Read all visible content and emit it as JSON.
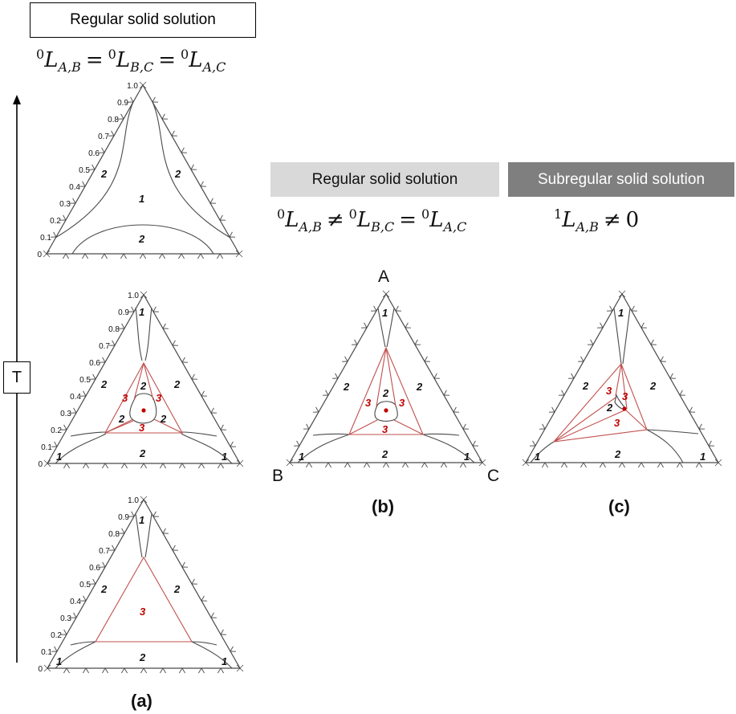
{
  "header_a": {
    "title": "Regular solid solution"
  },
  "header_b": {
    "title": "Regular solid solution"
  },
  "header_c": {
    "title": "Subregular solid solution"
  },
  "formula_a": {
    "sup": "0",
    "L": "L",
    "sub1": "A,B",
    "op1": "=",
    "sub2": "B,C",
    "op2": "=",
    "sub3": "A,C"
  },
  "formula_b": {
    "sup": "0",
    "L": "L",
    "sub1": "A,B",
    "op1": "≠",
    "sub2": "B,C",
    "op2": "=",
    "sub3": "A,C"
  },
  "formula_c": {
    "sup": "1",
    "L": "L",
    "sub1": "A,B",
    "op1": "≠",
    "value": "0"
  },
  "axis": {
    "label": "T"
  },
  "tick_labels": [
    "0",
    "0.1",
    "0.2",
    "0.3",
    "0.4",
    "0.5",
    "0.6",
    "0.7",
    "0.8",
    "0.9",
    "1.0"
  ],
  "vertices": {
    "top": "A",
    "left": "B",
    "right": "C"
  },
  "panels": {
    "a": "(a)",
    "b": "(b)",
    "c": "(c)"
  },
  "region_labels": {
    "one": "1",
    "two": "2",
    "three": "3"
  },
  "colors": {
    "line": "#4a4a4a",
    "three_phase": "#c0504d",
    "point": "#c00000"
  }
}
